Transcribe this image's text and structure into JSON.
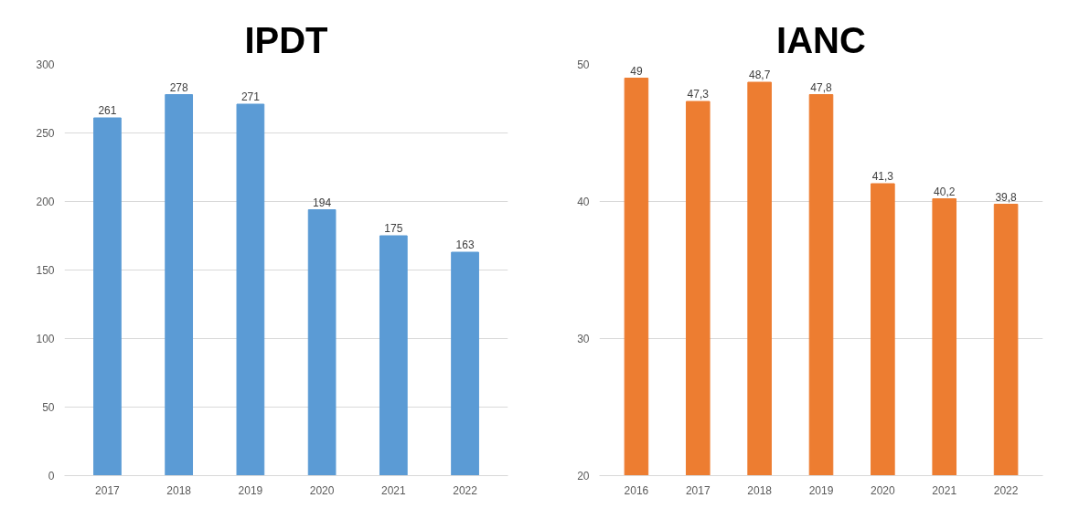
{
  "chart_data": [
    {
      "type": "bar",
      "title": "IPDT",
      "categories": [
        "2017",
        "2018",
        "2019",
        "2020",
        "2021",
        "2022"
      ],
      "values": [
        261,
        278,
        271,
        194,
        175,
        163
      ],
      "value_labels": [
        "261",
        "278",
        "271",
        "194",
        "175",
        "163"
      ],
      "color": "#5b9bd5",
      "ylim": [
        0,
        300
      ],
      "yticks": [
        0,
        50,
        100,
        150,
        200,
        250,
        300
      ],
      "grid": "y"
    },
    {
      "type": "bar",
      "title": "IANC",
      "categories": [
        "2016",
        "2017",
        "2018",
        "2019",
        "2020",
        "2021",
        "2022"
      ],
      "values": [
        49,
        47.3,
        48.7,
        47.8,
        41.3,
        40.2,
        39.8
      ],
      "value_labels": [
        "49",
        "47,3",
        "48,7",
        "47,8",
        "41,3",
        "40,2",
        "39,8"
      ],
      "color": "#ed7d31",
      "ylim": [
        20,
        50
      ],
      "yticks": [
        20,
        30,
        40,
        50
      ],
      "grid": "y"
    }
  ]
}
